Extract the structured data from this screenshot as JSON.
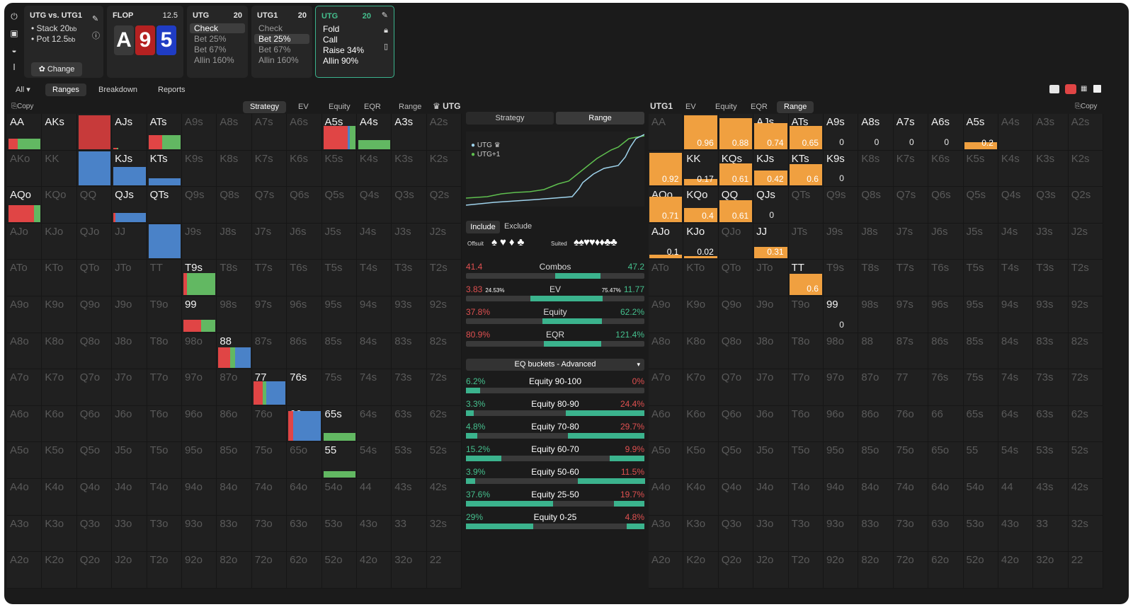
{
  "sidebar_icons": [
    "power-icon",
    "save-icon",
    "gamepad-icon",
    "text-cursor-icon"
  ],
  "game": {
    "title": "UTG vs. UTG1",
    "stack_label": "Stack 20",
    "stack_unit": "bb",
    "pot_label": "Pot 12.5",
    "pot_unit": "bb",
    "change": "Change"
  },
  "flop": {
    "title": "FLOP",
    "pot": "12.5",
    "cards": [
      {
        "rank": "A",
        "color": "#3a3a3a"
      },
      {
        "rank": "9",
        "color": "#b52121"
      },
      {
        "rank": "5",
        "color": "#1f3cc4"
      }
    ]
  },
  "nodes": [
    {
      "player": "UTG",
      "stack": "20",
      "actions": [
        "Check",
        "Bet 25%",
        "Bet 67%",
        "Allin 160%"
      ],
      "selected": 0
    },
    {
      "player": "UTG1",
      "stack": "20",
      "actions": [
        "Check",
        "Bet 25%",
        "Bet 67%",
        "Allin 160%"
      ],
      "selected": 1
    },
    {
      "player": "UTG",
      "stack": "20",
      "actions": [
        "Fold",
        "Call",
        "Raise 34%",
        "Allin 90%"
      ],
      "selected": -1
    }
  ],
  "topnav": {
    "all": "All",
    "tabs": [
      "Ranges",
      "Breakdown",
      "Reports"
    ],
    "active": "Ranges"
  },
  "left_panel": {
    "copy": "Copy",
    "tabs": [
      "Strategy",
      "EV",
      "Equity",
      "EQR",
      "Range"
    ],
    "active": "Strategy",
    "player": "UTG"
  },
  "right_panel": {
    "player": "UTG1",
    "tabs": [
      "EV",
      "Equity",
      "EQR",
      "Range"
    ],
    "active": "Range",
    "copy": "Copy"
  },
  "middle": {
    "tabs": [
      "Strategy",
      "Range"
    ],
    "active": "Range",
    "legend": [
      "UTG",
      "UTG+1"
    ],
    "filter_tabs": [
      "Include",
      "Exclude"
    ],
    "offsuit": "Offsuit",
    "suited": "Suited",
    "stats": [
      {
        "label": "Combos",
        "left": "41.4",
        "right": "47.2",
        "pct": 0.47
      },
      {
        "label": "EV",
        "left": "3.83",
        "left_pct": "24.53%",
        "right_pct": "75.47%",
        "right": "11.77",
        "pct": 0.75
      },
      {
        "label": "Equity",
        "left": "37.8%",
        "right": "62.2%",
        "pct": 0.62
      },
      {
        "label": "EQR",
        "left": "80.9%",
        "right": "121.4%",
        "pct": 0.6
      }
    ],
    "bucket_select": "EQ buckets - Advanced",
    "buckets": [
      {
        "label": "Equity 90-100",
        "left": "6.2%",
        "right": "0%",
        "pct": 0.0
      },
      {
        "label": "Equity 80-90",
        "left": "3.3%",
        "right": "24.4%",
        "pct": 0.88
      },
      {
        "label": "Equity 70-80",
        "left": "4.8%",
        "right": "29.7%",
        "pct": 0.86
      },
      {
        "label": "Equity 60-70",
        "left": "15.2%",
        "right": "9.9%",
        "pct": 0.39
      },
      {
        "label": "Equity 50-60",
        "left": "3.9%",
        "right": "11.5%",
        "pct": 0.75
      },
      {
        "label": "Equity 25-50",
        "left": "37.6%",
        "right": "19.7%",
        "pct": 0.34
      },
      {
        "label": "Equity 0-25",
        "left": "29%",
        "right": "4.8%",
        "pct": 0.2
      }
    ]
  },
  "strategy_colors": {
    "allin": "#e04545",
    "raise": "#4a82c8",
    "call": "#62b862",
    "bet": "#4a82c8"
  },
  "left_active": {
    "AA": [
      [
        "#e04545",
        0.28
      ],
      [
        "#62b862",
        0.72
      ]
    ],
    "AKs": [],
    "AQs": [
      [
        "#c73a3a",
        1
      ]
    ],
    "AJs": [
      [
        "#e04545",
        0.1
      ],
      [
        "#62b862",
        0.05
      ]
    ],
    "ATs": [
      [
        "#e04545",
        0.42
      ],
      [
        "#62b862",
        0.58
      ]
    ],
    "A5s": [
      [
        "#e04545",
        0.75
      ],
      [
        "#4a82c8",
        0.08
      ],
      [
        "#62b862",
        0.17
      ]
    ],
    "A4s": [
      [
        "#62b862",
        1
      ]
    ],
    "A3s": [],
    "KQs": [
      [
        "#4a82c8",
        1
      ]
    ],
    "KJs": [
      [
        "#4a82c8",
        1
      ]
    ],
    "KTs": [
      [
        "#4a82c8",
        1
      ]
    ],
    "AQo": [
      [
        "#e04545",
        0.8
      ],
      [
        "#62b862",
        0.2
      ]
    ],
    "QJs": [
      [
        "#e04545",
        0.06
      ],
      [
        "#4a82c8",
        0.94
      ]
    ],
    "QTs": [],
    "JTs": [
      [
        "#4a82c8",
        1
      ]
    ],
    "T9s": [
      [
        "#e04545",
        0.12
      ],
      [
        "#62b862",
        0.88
      ]
    ],
    "99": [
      [
        "#e04545",
        0.55
      ],
      [
        "#62b862",
        0.45
      ]
    ],
    "88": [
      [
        "#e04545",
        0.37
      ],
      [
        "#62b862",
        0.16
      ],
      [
        "#4a82c8",
        0.47
      ]
    ],
    "77": [
      [
        "#e04545",
        0.3
      ],
      [
        "#62b862",
        0.1
      ],
      [
        "#4a82c8",
        0.6
      ]
    ],
    "76s": [],
    "66": [
      [
        "#e04545",
        0.15
      ],
      [
        "#4a82c8",
        0.85
      ]
    ],
    "65s": [
      [
        "#62b862",
        1
      ]
    ],
    "55": [
      [
        "#62b862",
        1
      ]
    ]
  },
  "left_heights": {
    "AA": 0.32,
    "AQs": 1,
    "AJs": 0.05,
    "ATs": 0.42,
    "A5s": 0.68,
    "A4s": 0.28,
    "KQs": 1,
    "KJs": 0.55,
    "KTs": 0.2,
    "AQo": 0.5,
    "QJs": 0.28,
    "JTs": 1,
    "T9s": 0.65,
    "99": 0.35,
    "88": 0.6,
    "77": 0.68,
    "66": 0.88,
    "65s": 0.22,
    "55": 0.18
  },
  "right_values": {
    "AKs": "0.96",
    "AQs": "0.88",
    "AJs": "0.74",
    "ATs": "0.65",
    "A9s": "0",
    "A8s": "0",
    "A7s": "0",
    "A6s": "0",
    "A5s": "0.2",
    "AKo": "0.92",
    "KK": "0.17",
    "KQs": "0.61",
    "KJs": "0.42",
    "KTs": "0.6",
    "K9s": "0",
    "AQo": "0.71",
    "KQo": "0.4",
    "QQ": "0.61",
    "QJs": "0",
    "AJo": "0.1",
    "KJo": "0.02",
    "JJ": "0.31",
    "TT": "0.6",
    "99": "0"
  },
  "ranks": [
    "A",
    "K",
    "Q",
    "J",
    "T",
    "9",
    "8",
    "7",
    "6",
    "5",
    "4",
    "3",
    "2"
  ]
}
